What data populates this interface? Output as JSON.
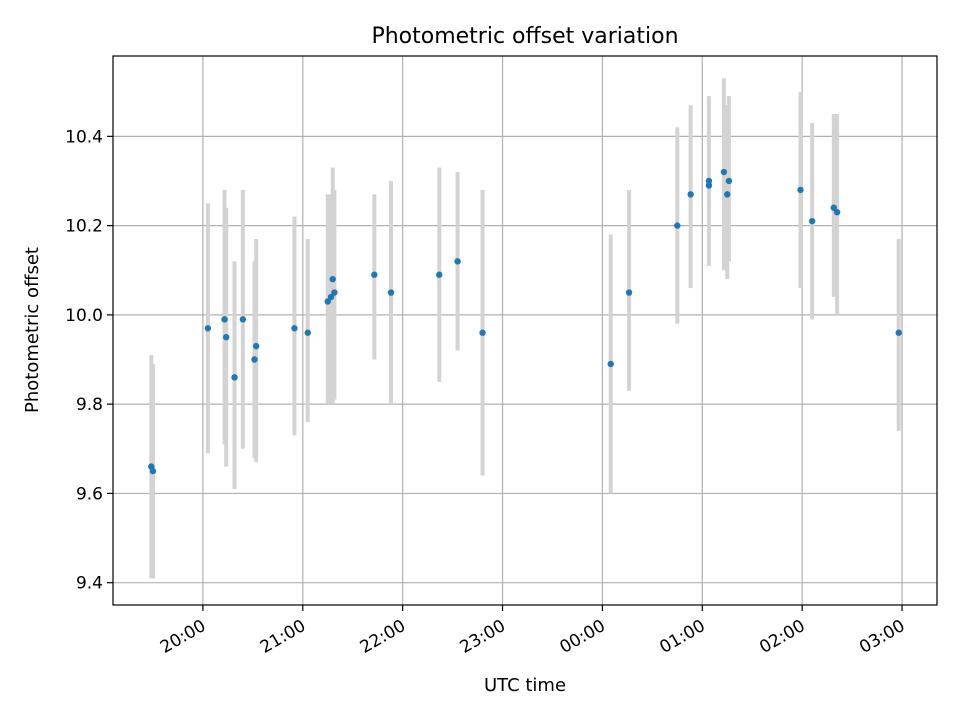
{
  "chart_data": {
    "type": "scatter",
    "title": "Photometric offset variation",
    "xlabel": "UTC time",
    "ylabel": "Photometric offset",
    "x_ticks": [
      "20:00",
      "21:00",
      "22:00",
      "23:00",
      "00:00",
      "01:00",
      "02:00",
      "03:00"
    ],
    "y_ticks": [
      "9.4",
      "9.6",
      "9.8",
      "10.0",
      "10.2",
      "10.4"
    ],
    "xlim": [
      "19:06",
      "03:21"
    ],
    "ylim": [
      9.35,
      10.58
    ],
    "grid": true,
    "colors": {
      "marker": "#1f77b4",
      "errorbar": "#d3d3d3",
      "grid": "#b0b0b0"
    },
    "points": [
      {
        "x": "19:29",
        "y": 9.66,
        "ymin": 9.41,
        "ymax": 9.91
      },
      {
        "x": "19:30",
        "y": 9.65,
        "ymin": 9.41,
        "ymax": 9.89
      },
      {
        "x": "20:03",
        "y": 9.97,
        "ymin": 9.69,
        "ymax": 10.25
      },
      {
        "x": "20:13",
        "y": 9.99,
        "ymin": 9.71,
        "ymax": 10.28
      },
      {
        "x": "20:14",
        "y": 9.95,
        "ymin": 9.66,
        "ymax": 10.24
      },
      {
        "x": "20:19",
        "y": 9.86,
        "ymin": 9.61,
        "ymax": 10.12
      },
      {
        "x": "20:24",
        "y": 9.99,
        "ymin": 9.7,
        "ymax": 10.28
      },
      {
        "x": "20:31",
        "y": 9.9,
        "ymin": 9.68,
        "ymax": 10.12
      },
      {
        "x": "20:32",
        "y": 9.93,
        "ymin": 9.67,
        "ymax": 10.17
      },
      {
        "x": "20:55",
        "y": 9.97,
        "ymin": 9.73,
        "ymax": 10.22
      },
      {
        "x": "21:03",
        "y": 9.96,
        "ymin": 9.76,
        "ymax": 10.17
      },
      {
        "x": "21:15",
        "y": 10.03,
        "ymin": 9.8,
        "ymax": 10.27
      },
      {
        "x": "21:17",
        "y": 10.04,
        "ymin": 9.8,
        "ymax": 10.27
      },
      {
        "x": "21:18",
        "y": 10.08,
        "ymin": 9.8,
        "ymax": 10.33
      },
      {
        "x": "21:19",
        "y": 10.05,
        "ymin": 9.81,
        "ymax": 10.28
      },
      {
        "x": "21:43",
        "y": 10.09,
        "ymin": 9.9,
        "ymax": 10.27
      },
      {
        "x": "21:53",
        "y": 10.05,
        "ymin": 9.8,
        "ymax": 10.3
      },
      {
        "x": "22:22",
        "y": 10.09,
        "ymin": 9.85,
        "ymax": 10.33
      },
      {
        "x": "22:33",
        "y": 10.12,
        "ymin": 9.92,
        "ymax": 10.32
      },
      {
        "x": "22:48",
        "y": 9.96,
        "ymin": 9.64,
        "ymax": 10.28
      },
      {
        "x": "00:05",
        "y": 9.89,
        "ymin": 9.6,
        "ymax": 10.18
      },
      {
        "x": "00:16",
        "y": 10.05,
        "ymin": 9.83,
        "ymax": 10.28
      },
      {
        "x": "00:45",
        "y": 10.2,
        "ymin": 9.98,
        "ymax": 10.42
      },
      {
        "x": "00:53",
        "y": 10.27,
        "ymin": 10.06,
        "ymax": 10.47
      },
      {
        "x": "01:04",
        "y": 10.3,
        "ymin": 10.11,
        "ymax": 10.48
      },
      {
        "x": "01:04",
        "y": 10.29,
        "ymin": 10.11,
        "ymax": 10.49
      },
      {
        "x": "01:13",
        "y": 10.32,
        "ymin": 10.1,
        "ymax": 10.53
      },
      {
        "x": "01:15",
        "y": 10.27,
        "ymin": 10.08,
        "ymax": 10.47
      },
      {
        "x": "01:16",
        "y": 10.3,
        "ymin": 10.12,
        "ymax": 10.49
      },
      {
        "x": "01:59",
        "y": 10.28,
        "ymin": 10.06,
        "ymax": 10.5
      },
      {
        "x": "02:06",
        "y": 10.21,
        "ymin": 9.99,
        "ymax": 10.43
      },
      {
        "x": "02:19",
        "y": 10.24,
        "ymin": 10.04,
        "ymax": 10.45
      },
      {
        "x": "02:21",
        "y": 10.23,
        "ymin": 10.0,
        "ymax": 10.45
      },
      {
        "x": "02:58",
        "y": 9.96,
        "ymin": 9.74,
        "ymax": 10.17
      }
    ]
  }
}
